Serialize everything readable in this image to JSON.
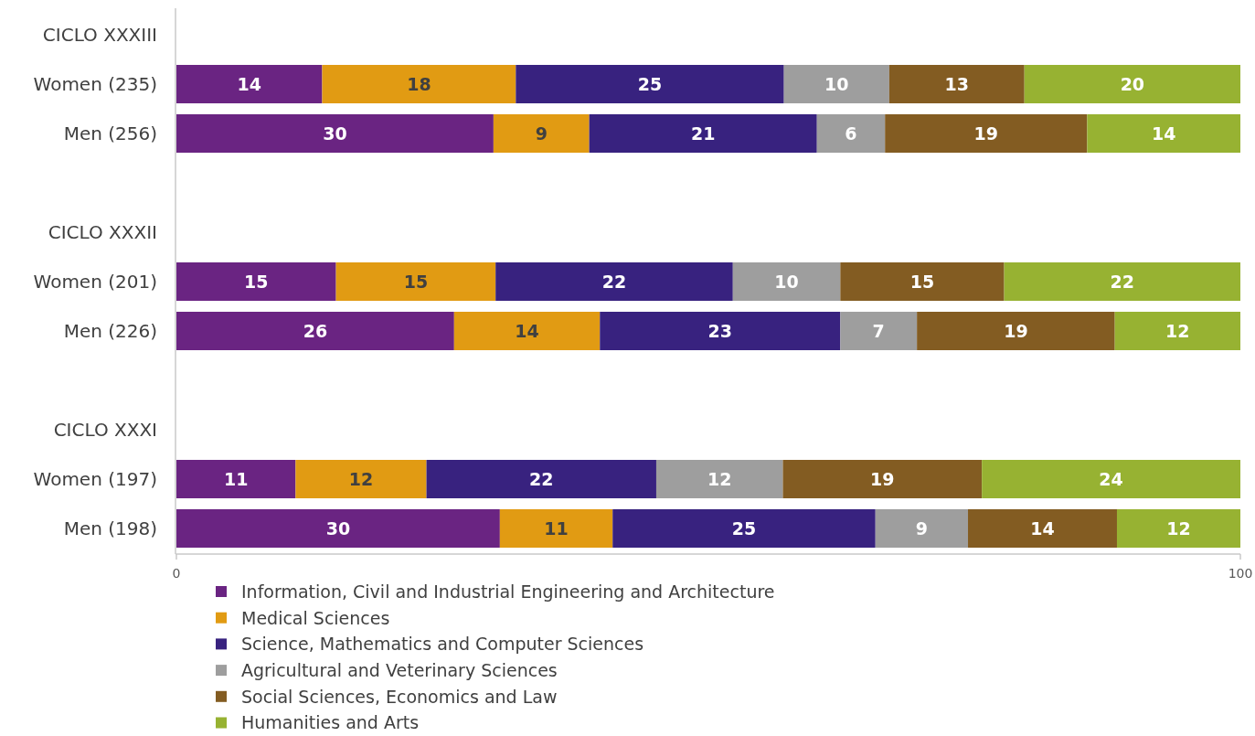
{
  "chart_data": {
    "type": "bar",
    "orientation": "horizontal",
    "stacked": true,
    "categories": [
      "CICLO XXXIII",
      "Women (235)",
      "Men (256)",
      null,
      "CICLO XXXII",
      "Women (201)",
      "Men (226)",
      null,
      "CICLO XXXI",
      "Women (197)",
      "Men (198)"
    ],
    "series": [
      {
        "name": "Information, Civil and Industrial Engineering and Architecture",
        "color": "#6a2482",
        "values": [
          null,
          13.7,
          29.8,
          null,
          null,
          15.0,
          26.1,
          null,
          null,
          11.2,
          30.4
        ],
        "value_labels": [
          null,
          "14",
          "30",
          null,
          null,
          "15",
          "26",
          null,
          null,
          "11",
          "30"
        ]
      },
      {
        "name": "Medical Sciences",
        "color": "#e19b13",
        "values": [
          null,
          18.2,
          9.0,
          null,
          null,
          15.0,
          13.7,
          null,
          null,
          12.3,
          10.6
        ],
        "value_labels": [
          null,
          "18",
          "9",
          null,
          null,
          "15",
          "14",
          null,
          null,
          "12",
          "11"
        ]
      },
      {
        "name": "Science, Mathematics and Computer Sciences",
        "color": "#38227f",
        "values": [
          null,
          25.2,
          21.4,
          null,
          null,
          22.3,
          22.6,
          null,
          null,
          21.6,
          24.7
        ],
        "value_labels": [
          null,
          "25",
          "21",
          null,
          null,
          "22",
          "23",
          null,
          null,
          "22",
          "25"
        ]
      },
      {
        "name": "Agricultural and Veterinary Sciences",
        "color": "#9e9e9e",
        "values": [
          null,
          9.9,
          6.4,
          null,
          null,
          10.1,
          7.2,
          null,
          null,
          11.9,
          8.7
        ],
        "value_labels": [
          null,
          "10",
          "6",
          null,
          null,
          "10",
          "7",
          null,
          null,
          "12",
          "9"
        ]
      },
      {
        "name": "Social Sciences, Economics and Law",
        "color": "#835c22",
        "values": [
          null,
          12.7,
          19.0,
          null,
          null,
          15.4,
          18.6,
          null,
          null,
          18.7,
          14.0
        ],
        "value_labels": [
          null,
          "13",
          "19",
          null,
          null,
          "15",
          "19",
          null,
          null,
          "19",
          "14"
        ]
      },
      {
        "name": "Humanities and Arts",
        "color": "#97b232",
        "values": [
          null,
          20.3,
          14.4,
          null,
          null,
          22.2,
          11.8,
          null,
          null,
          24.3,
          11.6
        ],
        "value_labels": [
          null,
          "20",
          "14",
          null,
          null,
          "22",
          "12",
          null,
          null,
          "24",
          "12"
        ]
      }
    ],
    "xlim": [
      0,
      100
    ],
    "xticks": [
      0,
      100
    ],
    "legend": "bottom"
  }
}
